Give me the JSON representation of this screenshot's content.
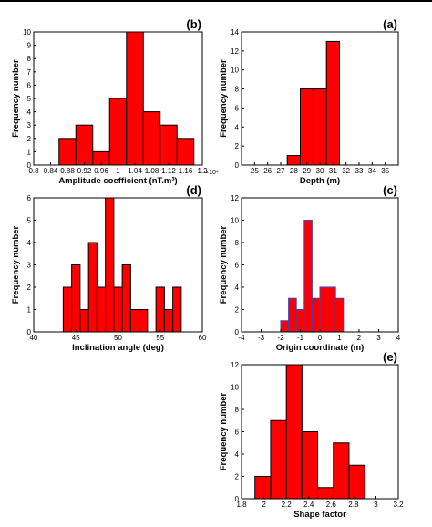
{
  "chart_data": [
    {
      "panel_label": "(b)",
      "type": "bar",
      "xlabel": "Amplitude coefficient (nT.m³)",
      "ylabel": "Frequency number",
      "x_multiplier": "×10⁴",
      "xlim": [
        0.8,
        1.2
      ],
      "ylim": [
        0,
        10
      ],
      "xticks": [
        "0.8",
        "0.84",
        "0.88",
        "0.92",
        "0.96",
        "1",
        "1.04",
        "1.08",
        "1.12",
        "1.16",
        "1.2"
      ],
      "yticks": [
        "0",
        "1",
        "2",
        "3",
        "4",
        "5",
        "6",
        "7",
        "8",
        "9",
        "10"
      ],
      "bars": [
        {
          "x0": 0.86,
          "x1": 0.9,
          "value": 2
        },
        {
          "x0": 0.9,
          "x1": 0.94,
          "value": 3
        },
        {
          "x0": 0.94,
          "x1": 0.98,
          "value": 1
        },
        {
          "x0": 0.98,
          "x1": 1.02,
          "value": 5
        },
        {
          "x0": 1.02,
          "x1": 1.06,
          "value": 10
        },
        {
          "x0": 1.06,
          "x1": 1.1,
          "value": 4
        },
        {
          "x0": 1.1,
          "x1": 1.14,
          "value": 3
        },
        {
          "x0": 1.14,
          "x1": 1.18,
          "value": 2
        }
      ],
      "bar_color": "#ff0000",
      "edge_color": "#000000"
    },
    {
      "panel_label": "(a)",
      "type": "bar",
      "xlabel": "Depth (m)",
      "ylabel": "Frequency number",
      "xlim": [
        24,
        36
      ],
      "ylim": [
        0,
        14
      ],
      "xticks": [
        "25",
        "26",
        "27",
        "28",
        "29",
        "30",
        "31",
        "32",
        "33",
        "34",
        "35"
      ],
      "yticks": [
        "0",
        "2",
        "4",
        "6",
        "8",
        "10",
        "12",
        "14"
      ],
      "bars": [
        {
          "x0": 27.5,
          "x1": 28.5,
          "value": 1
        },
        {
          "x0": 28.5,
          "x1": 29.5,
          "value": 8
        },
        {
          "x0": 29.5,
          "x1": 30.5,
          "value": 8
        },
        {
          "x0": 30.5,
          "x1": 31.5,
          "value": 13
        }
      ],
      "bar_color": "#ff0000",
      "edge_color": "#000000"
    },
    {
      "panel_label": "(d)",
      "type": "bar",
      "xlabel": "Inclination angle (deg)",
      "ylabel": "Frequency number",
      "xlim": [
        40,
        60
      ],
      "ylim": [
        0,
        6
      ],
      "xticks": [
        "40",
        "45",
        "50",
        "55",
        "60"
      ],
      "yticks": [
        "0",
        "1",
        "2",
        "3",
        "4",
        "5",
        "6"
      ],
      "bars": [
        {
          "x0": 43.5,
          "x1": 44.5,
          "value": 2
        },
        {
          "x0": 44.5,
          "x1": 45.5,
          "value": 3
        },
        {
          "x0": 45.5,
          "x1": 46.5,
          "value": 1
        },
        {
          "x0": 46.5,
          "x1": 47.5,
          "value": 4
        },
        {
          "x0": 47.5,
          "x1": 48.5,
          "value": 2
        },
        {
          "x0": 48.5,
          "x1": 49.5,
          "value": 6
        },
        {
          "x0": 49.5,
          "x1": 50.5,
          "value": 2
        },
        {
          "x0": 50.5,
          "x1": 51.5,
          "value": 3
        },
        {
          "x0": 51.5,
          "x1": 52.5,
          "value": 1
        },
        {
          "x0": 52.5,
          "x1": 53.5,
          "value": 1
        },
        {
          "x0": 54.5,
          "x1": 55.5,
          "value": 2
        },
        {
          "x0": 55.5,
          "x1": 56.5,
          "value": 1
        },
        {
          "x0": 56.5,
          "x1": 57.5,
          "value": 2
        }
      ],
      "bar_color": "#ff0000",
      "edge_color": "#000000"
    },
    {
      "panel_label": "(c)",
      "type": "bar",
      "xlabel": "Origin coordinate (m)",
      "ylabel": "Frequency number",
      "xlim": [
        -4,
        4
      ],
      "ylim": [
        0,
        12
      ],
      "xticks": [
        "-4",
        "-3",
        "-2",
        "-1",
        "0",
        "1",
        "2",
        "3",
        "4"
      ],
      "yticks": [
        "0",
        "2",
        "4",
        "6",
        "8",
        "10",
        "12"
      ],
      "bars": [
        {
          "x0": -2.0,
          "x1": -1.6,
          "value": 1
        },
        {
          "x0": -1.6,
          "x1": -1.2,
          "value": 3
        },
        {
          "x0": -1.2,
          "x1": -0.8,
          "value": 2
        },
        {
          "x0": -0.8,
          "x1": -0.4,
          "value": 10
        },
        {
          "x0": -0.4,
          "x1": 0.0,
          "value": 3
        },
        {
          "x0": 0.0,
          "x1": 0.4,
          "value": 4
        },
        {
          "x0": 0.4,
          "x1": 0.8,
          "value": 4
        },
        {
          "x0": 0.8,
          "x1": 1.2,
          "value": 3
        }
      ],
      "bar_color": "#ff0000",
      "edge_color": "#4040c0"
    },
    {
      "panel_label": "(e)",
      "type": "bar",
      "xlabel": "Shape factor",
      "ylabel": "Frequency number",
      "xlim": [
        1.8,
        3.2
      ],
      "ylim": [
        0,
        12
      ],
      "xticks": [
        "1.8",
        "2",
        "2.2",
        "2.4",
        "2.6",
        "2.8",
        "3",
        "3.2"
      ],
      "yticks": [
        "0",
        "2",
        "4",
        "6",
        "8",
        "10",
        "12"
      ],
      "bars": [
        {
          "x0": 1.92,
          "x1": 2.06,
          "value": 2
        },
        {
          "x0": 2.06,
          "x1": 2.2,
          "value": 7
        },
        {
          "x0": 2.2,
          "x1": 2.34,
          "value": 12
        },
        {
          "x0": 2.34,
          "x1": 2.48,
          "value": 6
        },
        {
          "x0": 2.48,
          "x1": 2.62,
          "value": 1
        },
        {
          "x0": 2.62,
          "x1": 2.76,
          "value": 5
        },
        {
          "x0": 2.76,
          "x1": 2.9,
          "value": 3
        }
      ],
      "bar_color": "#ff0000",
      "edge_color": "#000000"
    }
  ]
}
